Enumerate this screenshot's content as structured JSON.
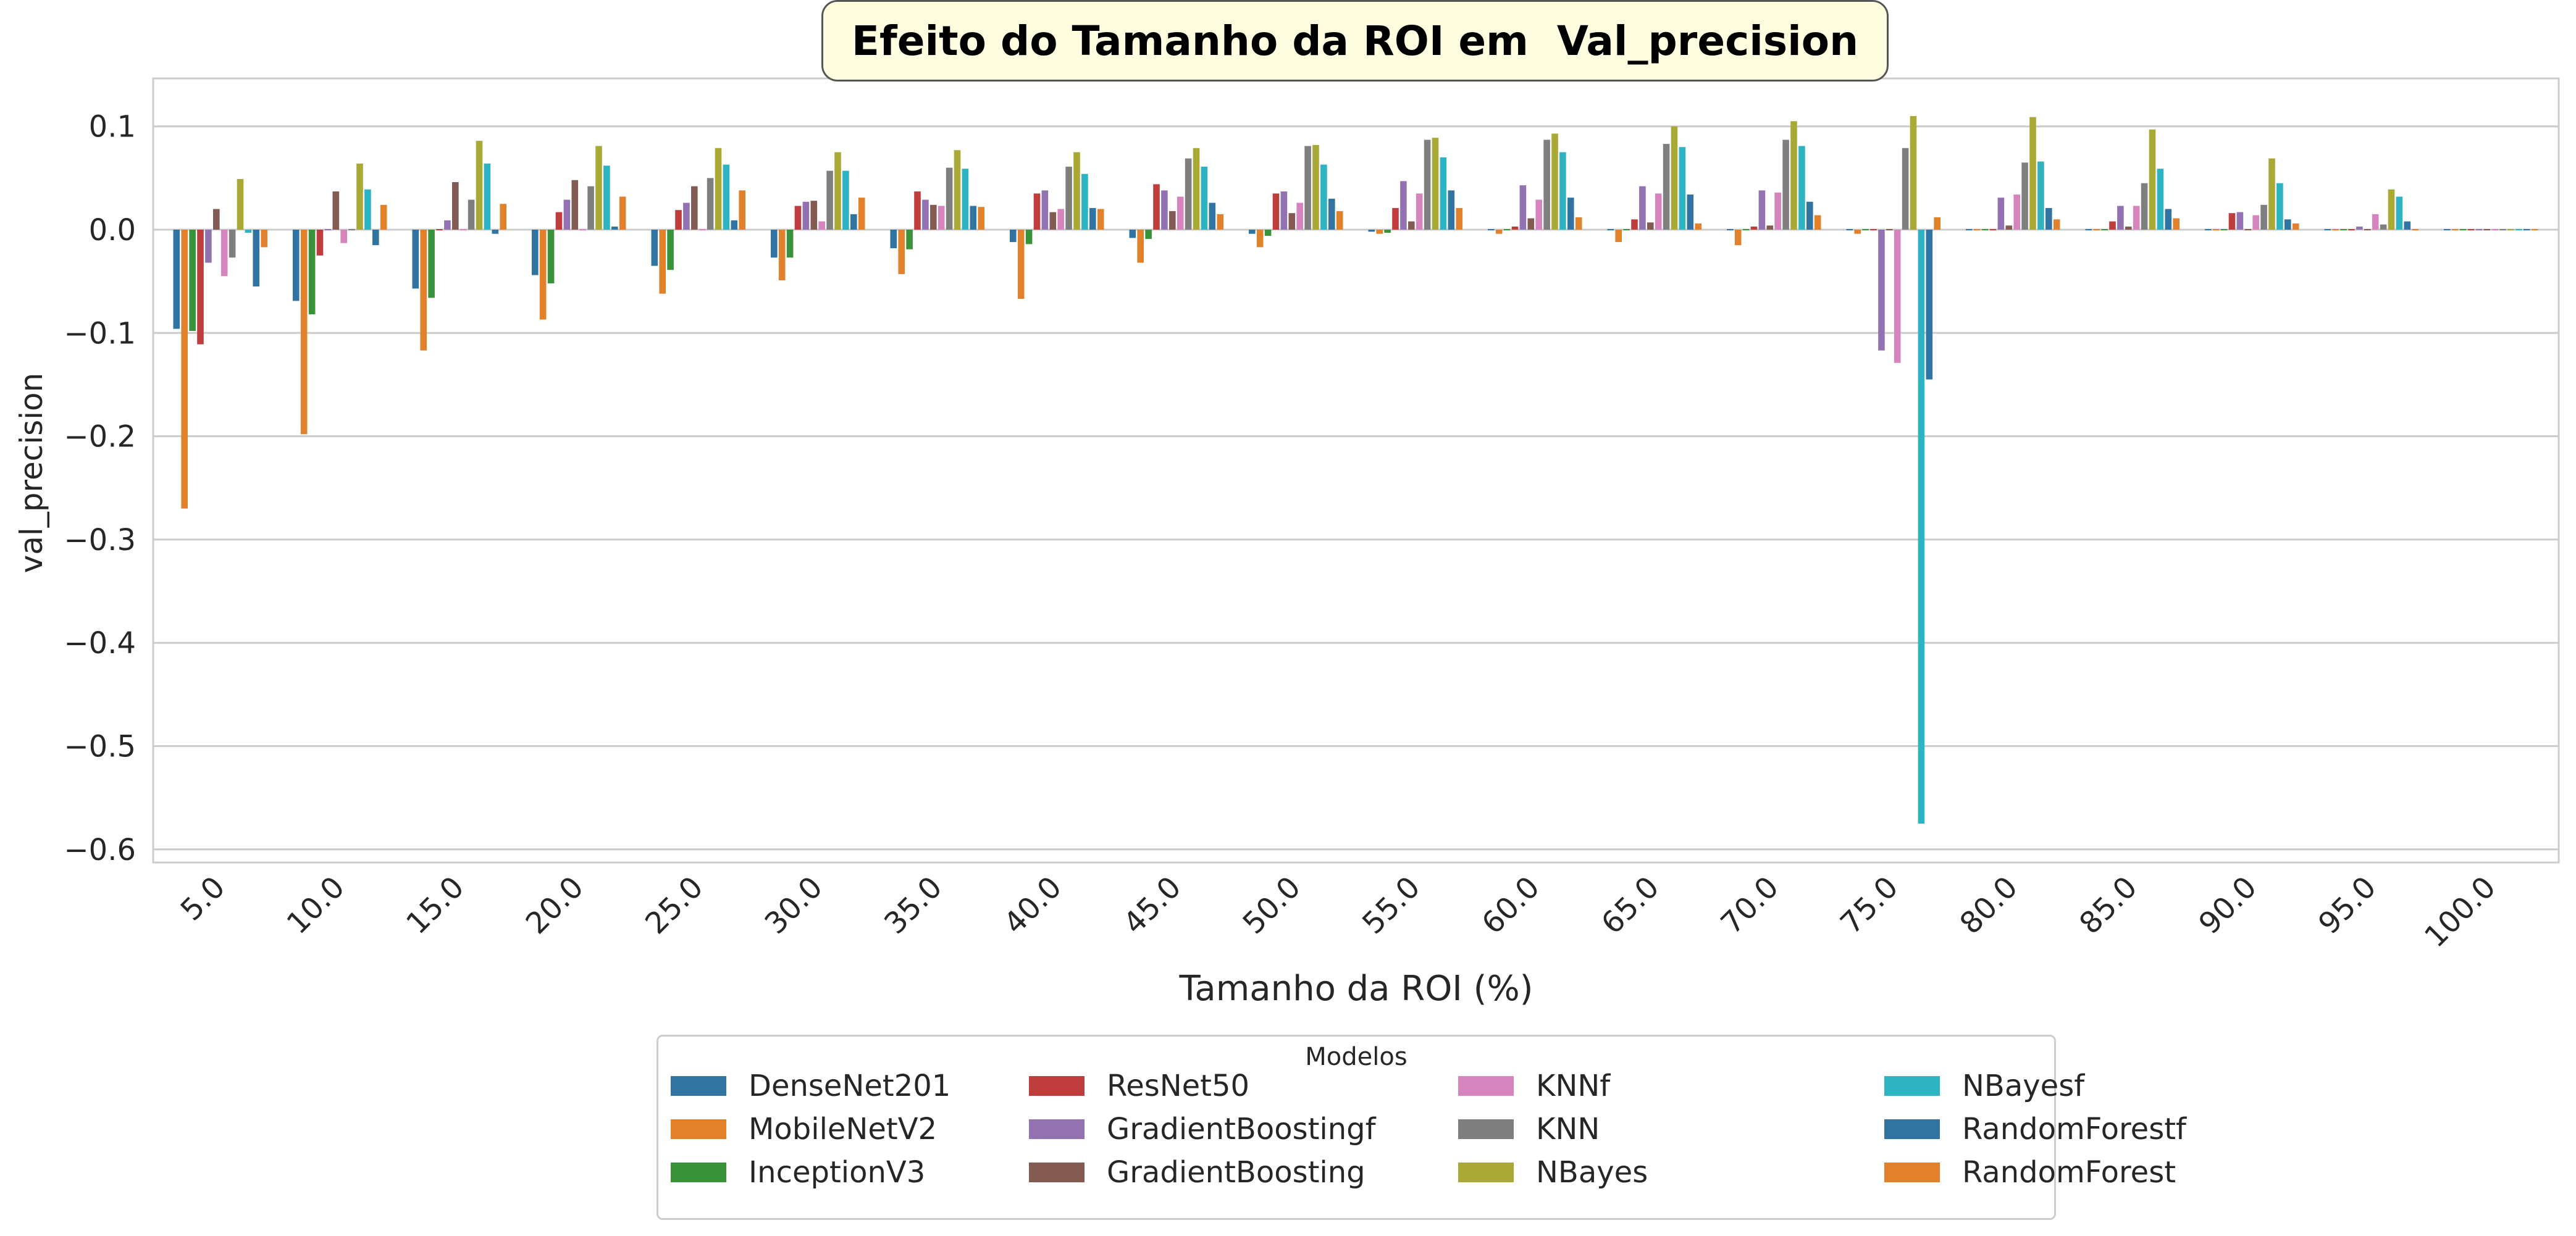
{
  "title": "Efeito do Tamanho da ROI em  Val_precision",
  "chart_data": {
    "type": "bar",
    "title": "Efeito do Tamanho da ROI em  Val_precision",
    "xlabel": "Tamanho da ROI (%)",
    "ylabel": "val_precision",
    "ylim": [
      -0.61,
      0.145
    ],
    "yticks": [
      0.1,
      0.0,
      -0.1,
      -0.2,
      -0.3,
      -0.4,
      -0.5,
      -0.6
    ],
    "ytick_labels": [
      "0.1",
      "0.0",
      "−0.1",
      "−0.2",
      "−0.3",
      "−0.4",
      "−0.5",
      "−0.6"
    ],
    "grid": true,
    "legend_title": "Modelos",
    "legend_position": "bottom-center",
    "categories": [
      "5.0",
      "10.0",
      "15.0",
      "20.0",
      "25.0",
      "30.0",
      "35.0",
      "40.0",
      "45.0",
      "50.0",
      "55.0",
      "60.0",
      "65.0",
      "70.0",
      "75.0",
      "80.0",
      "85.0",
      "90.0",
      "95.0",
      "100.0"
    ],
    "series": [
      {
        "name": "DenseNet201",
        "color": "#3274a1",
        "values": [
          -0.096,
          -0.069,
          -0.057,
          -0.044,
          -0.035,
          -0.027,
          -0.018,
          -0.012,
          -0.008,
          -0.004,
          -0.002,
          0.0,
          0.0,
          0.0,
          0.0,
          0.0,
          0.0,
          0.0,
          0.0,
          0.0
        ]
      },
      {
        "name": "MobileNetV2",
        "color": "#e1812c",
        "values": [
          -0.27,
          -0.198,
          -0.117,
          -0.087,
          -0.062,
          -0.049,
          -0.043,
          -0.067,
          -0.032,
          -0.017,
          -0.004,
          -0.004,
          -0.012,
          -0.015,
          -0.004,
          0.0,
          0.0,
          0.0,
          0.0,
          0.0
        ]
      },
      {
        "name": "InceptionV3",
        "color": "#3a923a",
        "values": [
          -0.098,
          -0.082,
          -0.066,
          -0.052,
          -0.039,
          -0.027,
          -0.019,
          -0.014,
          -0.009,
          -0.006,
          -0.003,
          0.0,
          0.0,
          0.0,
          0.0,
          0.0,
          0.0,
          0.0,
          0.0,
          0.0
        ]
      },
      {
        "name": "ResNet50",
        "color": "#c03d3e",
        "values": [
          -0.111,
          -0.025,
          0.001,
          0.017,
          0.019,
          0.023,
          0.037,
          0.035,
          0.044,
          0.035,
          0.021,
          0.003,
          0.01,
          0.003,
          0.0,
          0.0,
          0.008,
          0.016,
          0.0,
          0.0
        ]
      },
      {
        "name": "GradientBoostingf",
        "color": "#9372b2",
        "values": [
          -0.032,
          0.0,
          0.009,
          0.029,
          0.026,
          0.027,
          0.029,
          0.038,
          0.038,
          0.037,
          0.047,
          0.043,
          0.042,
          0.038,
          -0.117,
          0.031,
          0.023,
          0.017,
          0.003,
          0.0
        ]
      },
      {
        "name": "GradientBoosting",
        "color": "#845b53",
        "values": [
          0.02,
          0.037,
          0.046,
          0.048,
          0.042,
          0.028,
          0.024,
          0.017,
          0.018,
          0.016,
          0.008,
          0.011,
          0.007,
          0.004,
          0.0,
          0.004,
          0.003,
          0.001,
          0.0,
          0.0
        ]
      },
      {
        "name": "KNNf",
        "color": "#d684bd",
        "values": [
          -0.045,
          -0.013,
          0.001,
          0.0,
          0.0,
          0.008,
          0.023,
          0.02,
          0.032,
          0.026,
          0.035,
          0.029,
          0.035,
          0.036,
          -0.129,
          0.034,
          0.023,
          0.014,
          0.015,
          0.0
        ]
      },
      {
        "name": "KNN",
        "color": "#7f7f7f",
        "values": [
          -0.027,
          0.0,
          0.029,
          0.042,
          0.05,
          0.057,
          0.06,
          0.061,
          0.069,
          0.081,
          0.087,
          0.087,
          0.083,
          0.087,
          0.079,
          0.065,
          0.045,
          0.024,
          0.005,
          0.0
        ]
      },
      {
        "name": "NBayes",
        "color": "#a9aa35",
        "values": [
          0.049,
          0.064,
          0.086,
          0.081,
          0.079,
          0.075,
          0.077,
          0.075,
          0.079,
          0.082,
          0.089,
          0.093,
          0.1,
          0.105,
          0.11,
          0.109,
          0.097,
          0.069,
          0.039,
          0.0
        ]
      },
      {
        "name": "NBayesf",
        "color": "#2eb3c2",
        "values": [
          -0.003,
          0.039,
          0.064,
          0.062,
          0.063,
          0.057,
          0.059,
          0.054,
          0.061,
          0.063,
          0.07,
          0.075,
          0.08,
          0.081,
          -0.575,
          0.066,
          0.059,
          0.045,
          0.032,
          0.0
        ]
      },
      {
        "name": "RandomForestf",
        "color": "#3274a1",
        "values": [
          -0.055,
          -0.015,
          -0.004,
          0.003,
          0.009,
          0.015,
          0.023,
          0.021,
          0.026,
          0.03,
          0.038,
          0.031,
          0.034,
          0.027,
          -0.145,
          0.021,
          0.02,
          0.01,
          0.008,
          0.0
        ]
      },
      {
        "name": "RandomForest",
        "color": "#e1812c",
        "values": [
          -0.017,
          0.024,
          0.025,
          0.032,
          0.038,
          0.031,
          0.022,
          0.02,
          0.015,
          0.018,
          0.021,
          0.012,
          0.006,
          0.014,
          0.012,
          0.01,
          0.011,
          0.006,
          0.0,
          0.0
        ]
      }
    ]
  }
}
